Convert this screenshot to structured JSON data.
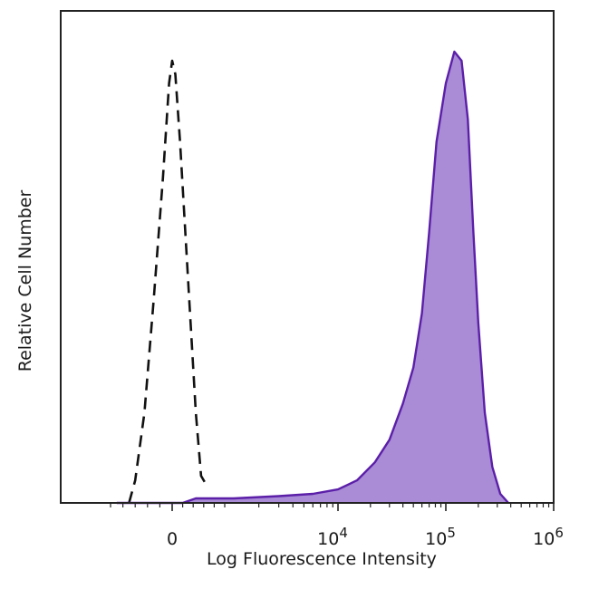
{
  "chart_data": {
    "type": "area",
    "title": "",
    "xlabel": "Log Fluorescence Intensity",
    "ylabel": "Relative Cell Number",
    "x_scale": "biexponential",
    "xlim": [
      -1000,
      1000000
    ],
    "ylim": [
      0,
      1.0
    ],
    "x_tick_labels": [
      {
        "x": 0,
        "label": "0"
      },
      {
        "x": 10000,
        "label": "10",
        "exp": "4"
      },
      {
        "x": 100000,
        "label": "10",
        "exp": "5"
      },
      {
        "x": 1000000,
        "label": "10",
        "exp": "6"
      }
    ],
    "series": [
      {
        "style": "dashed",
        "color": "#111111",
        "fill": "none",
        "points": [
          [
            -700,
            0.0
          ],
          [
            -600,
            0.05
          ],
          [
            -450,
            0.2
          ],
          [
            -300,
            0.45
          ],
          [
            -150,
            0.72
          ],
          [
            -50,
            0.93
          ],
          [
            0,
            0.98
          ],
          [
            60,
            0.95
          ],
          [
            150,
            0.8
          ],
          [
            250,
            0.6
          ],
          [
            350,
            0.4
          ],
          [
            450,
            0.2
          ],
          [
            550,
            0.06
          ],
          [
            650,
            0.04
          ]
        ]
      },
      {
        "style": "solid",
        "color": "#5b1fa8",
        "fill": "#a98bd6",
        "points": [
          [
            -900,
            0.0
          ],
          [
            200,
            0.0
          ],
          [
            450,
            0.01
          ],
          [
            1200,
            0.01
          ],
          [
            3000,
            0.015
          ],
          [
            6000,
            0.02
          ],
          [
            10000,
            0.03
          ],
          [
            15000,
            0.05
          ],
          [
            22000,
            0.09
          ],
          [
            30000,
            0.14
          ],
          [
            40000,
            0.22
          ],
          [
            50000,
            0.3
          ],
          [
            60000,
            0.42
          ],
          [
            70000,
            0.6
          ],
          [
            82000,
            0.8
          ],
          [
            100000,
            0.93
          ],
          [
            120000,
            1.0
          ],
          [
            140000,
            0.98
          ],
          [
            160000,
            0.85
          ],
          [
            180000,
            0.6
          ],
          [
            200000,
            0.4
          ],
          [
            230000,
            0.2
          ],
          [
            270000,
            0.08
          ],
          [
            320000,
            0.02
          ],
          [
            380000,
            0.0
          ]
        ]
      }
    ]
  }
}
